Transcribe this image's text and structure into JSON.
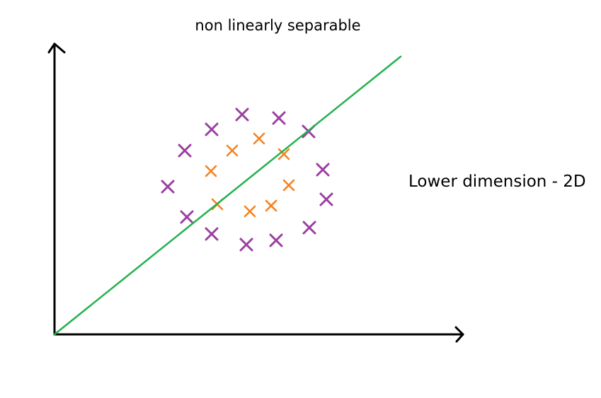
{
  "title": "non linearly separable",
  "side_label": "Lower dimension - 2D",
  "colors": {
    "outer_class": "#9b3fa0",
    "inner_class": "#f58220",
    "separator_line": "#22b14c",
    "axes": "#000000"
  },
  "marker": "x-mark",
  "chart_data": {
    "type": "scatter",
    "title": "non linearly separable",
    "xlabel": "",
    "ylabel": "",
    "series": [
      {
        "color": "#9b3fa0",
        "points": [
          [
            342,
            162
          ],
          [
            394,
            167
          ],
          [
            299,
            183
          ],
          [
            436,
            186
          ],
          [
            261,
            213
          ],
          [
            456,
            240
          ],
          [
            237,
            264
          ],
          [
            461,
            282
          ],
          [
            264,
            307
          ],
          [
            437,
            322
          ],
          [
            299,
            331
          ],
          [
            390,
            340
          ],
          [
            348,
            346
          ]
        ]
      },
      {
        "color": "#f58220",
        "points": [
          [
            366,
            196
          ],
          [
            328,
            213
          ],
          [
            401,
            218
          ],
          [
            298,
            242
          ],
          [
            408,
            262
          ],
          [
            307,
            289
          ],
          [
            383,
            291
          ],
          [
            353,
            299
          ]
        ]
      }
    ],
    "separator": {
      "color": "#22b14c",
      "from": [
        77,
        473
      ],
      "to": [
        566,
        80
      ]
    }
  }
}
